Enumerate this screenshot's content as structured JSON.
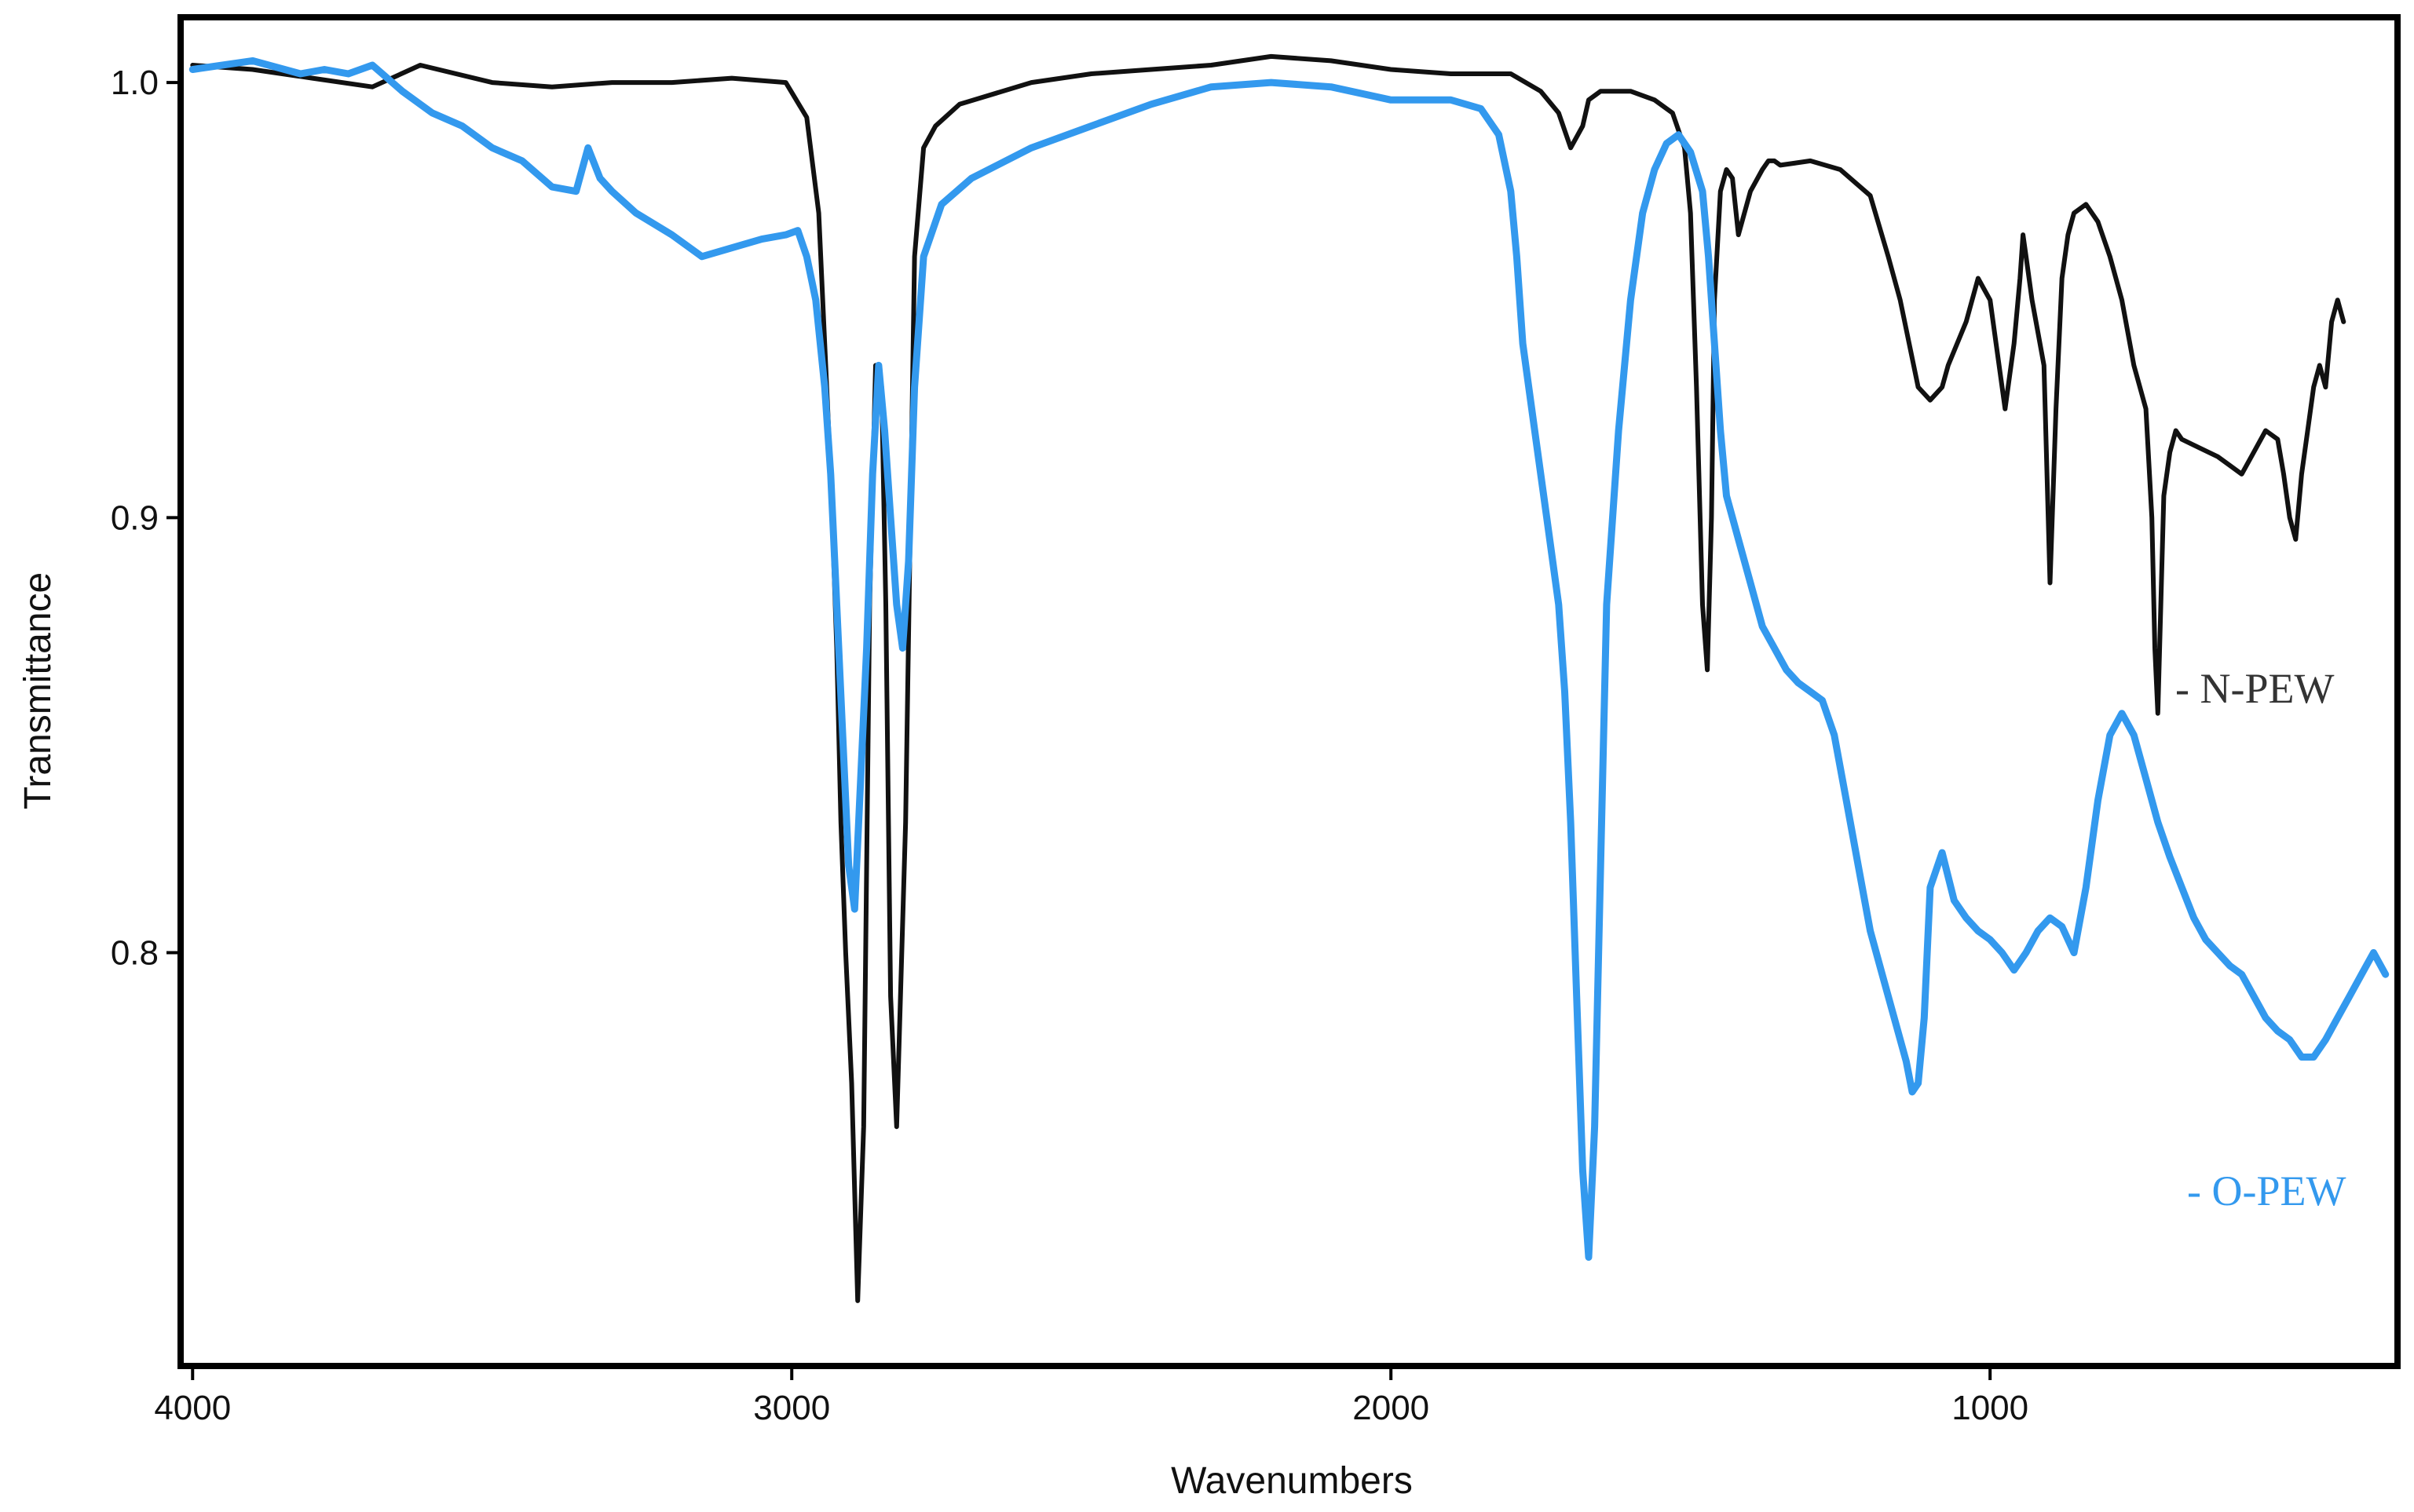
{
  "chart_data": {
    "type": "line",
    "title": "",
    "xlabel": "Wavenumbers",
    "ylabel": "Transmittance",
    "xlim": [
      4020,
      320
    ],
    "ylim": [
      0.705,
      1.015
    ],
    "x_reversed": true,
    "grid": false,
    "legend_placement": "right, next to series ends",
    "x_ticks": [
      4000,
      3000,
      2000,
      1000
    ],
    "x_tick_labels": [
      "4000",
      "3000",
      "2000",
      "1000"
    ],
    "y_ticks": [
      1.0,
      0.9,
      0.8
    ],
    "y_tick_labels": [
      "1.0",
      "0.9",
      "0.8"
    ],
    "series": [
      {
        "name": "- N-PEW",
        "color": "#111111",
        "x": [
          4000,
          3900,
          3800,
          3700,
          3620,
          3500,
          3400,
          3300,
          3200,
          3100,
          3010,
          2975,
          2955,
          2945,
          2935,
          2925,
          2918,
          2910,
          2900,
          2890,
          2880,
          2870,
          2860,
          2850,
          2843,
          2835,
          2825,
          2810,
          2795,
          2780,
          2760,
          2720,
          2600,
          2500,
          2400,
          2300,
          2200,
          2100,
          2000,
          1900,
          1800,
          1750,
          1720,
          1700,
          1680,
          1670,
          1650,
          1600,
          1560,
          1530,
          1510,
          1500,
          1490,
          1480,
          1472,
          1465,
          1460,
          1450,
          1440,
          1430,
          1420,
          1400,
          1380,
          1370,
          1360,
          1350,
          1300,
          1250,
          1200,
          1170,
          1150,
          1120,
          1100,
          1080,
          1070,
          1040,
          1020,
          1000,
          990,
          975,
          960,
          950,
          945,
          940,
          930,
          910,
          900,
          890,
          880,
          870,
          860,
          840,
          820,
          800,
          780,
          760,
          740,
          730,
          725,
          720,
          715,
          710,
          700,
          690,
          680,
          650,
          620,
          600,
          580,
          560,
          540,
          520,
          510,
          500,
          490,
          480,
          470,
          460,
          450,
          440,
          430,
          420,
          410
        ],
        "values": [
          1.004,
          1.003,
          1.001,
          0.999,
          1.004,
          1.0,
          0.999,
          1.0,
          1.0,
          1.001,
          1.0,
          0.992,
          0.97,
          0.94,
          0.91,
          0.87,
          0.83,
          0.8,
          0.77,
          0.72,
          0.76,
          0.88,
          0.935,
          0.93,
          0.88,
          0.79,
          0.76,
          0.83,
          0.96,
          0.985,
          0.99,
          0.995,
          1.0,
          1.002,
          1.003,
          1.004,
          1.006,
          1.005,
          1.003,
          1.002,
          1.002,
          0.998,
          0.993,
          0.985,
          0.99,
          0.996,
          0.998,
          0.998,
          0.996,
          0.993,
          0.985,
          0.97,
          0.93,
          0.88,
          0.865,
          0.9,
          0.95,
          0.975,
          0.98,
          0.978,
          0.965,
          0.975,
          0.98,
          0.982,
          0.982,
          0.981,
          0.982,
          0.98,
          0.974,
          0.96,
          0.95,
          0.93,
          0.927,
          0.93,
          0.935,
          0.945,
          0.955,
          0.95,
          0.94,
          0.925,
          0.94,
          0.955,
          0.965,
          0.96,
          0.95,
          0.935,
          0.885,
          0.925,
          0.955,
          0.965,
          0.97,
          0.972,
          0.968,
          0.96,
          0.95,
          0.935,
          0.925,
          0.9,
          0.87,
          0.855,
          0.88,
          0.905,
          0.915,
          0.92,
          0.918,
          0.916,
          0.914,
          0.912,
          0.91,
          0.915,
          0.92,
          0.918,
          0.91,
          0.9,
          0.895,
          0.91,
          0.92,
          0.93,
          0.935,
          0.93,
          0.945,
          0.95,
          0.945
        ]
      },
      {
        "name": "- O-PEW",
        "color": "#3399ee",
        "x": [
          4000,
          3900,
          3820,
          3780,
          3740,
          3700,
          3650,
          3600,
          3550,
          3500,
          3450,
          3400,
          3360,
          3340,
          3320,
          3300,
          3260,
          3200,
          3150,
          3100,
          3050,
          3010,
          2990,
          2975,
          2960,
          2945,
          2935,
          2925,
          2915,
          2905,
          2895,
          2885,
          2875,
          2865,
          2855,
          2845,
          2835,
          2825,
          2815,
          2805,
          2795,
          2780,
          2750,
          2700,
          2600,
          2500,
          2400,
          2300,
          2200,
          2100,
          2000,
          1900,
          1850,
          1820,
          1800,
          1790,
          1780,
          1760,
          1740,
          1720,
          1710,
          1700,
          1690,
          1680,
          1670,
          1660,
          1650,
          1640,
          1620,
          1600,
          1580,
          1560,
          1540,
          1520,
          1500,
          1480,
          1470,
          1460,
          1450,
          1440,
          1420,
          1400,
          1380,
          1360,
          1340,
          1320,
          1300,
          1280,
          1260,
          1240,
          1220,
          1200,
          1180,
          1160,
          1140,
          1130,
          1120,
          1110,
          1100,
          1080,
          1060,
          1040,
          1020,
          1000,
          980,
          960,
          940,
          920,
          900,
          880,
          860,
          840,
          820,
          800,
          780,
          760,
          740,
          720,
          700,
          680,
          660,
          640,
          620,
          600,
          580,
          560,
          540,
          520,
          500,
          480,
          460,
          440,
          420,
          400,
          380,
          360,
          340
        ],
        "values": [
          1.003,
          1.005,
          1.002,
          1.003,
          1.002,
          1.004,
          0.998,
          0.993,
          0.99,
          0.985,
          0.982,
          0.976,
          0.975,
          0.985,
          0.978,
          0.975,
          0.97,
          0.965,
          0.96,
          0.962,
          0.964,
          0.965,
          0.966,
          0.96,
          0.95,
          0.93,
          0.91,
          0.88,
          0.85,
          0.82,
          0.81,
          0.84,
          0.87,
          0.91,
          0.935,
          0.92,
          0.9,
          0.88,
          0.87,
          0.89,
          0.93,
          0.96,
          0.972,
          0.978,
          0.985,
          0.99,
          0.995,
          0.999,
          1.0,
          0.999,
          0.996,
          0.996,
          0.994,
          0.988,
          0.975,
          0.96,
          0.94,
          0.92,
          0.9,
          0.88,
          0.86,
          0.83,
          0.79,
          0.75,
          0.73,
          0.76,
          0.82,
          0.88,
          0.92,
          0.95,
          0.97,
          0.98,
          0.986,
          0.988,
          0.984,
          0.975,
          0.96,
          0.94,
          0.92,
          0.905,
          0.895,
          0.885,
          0.875,
          0.87,
          0.865,
          0.862,
          0.86,
          0.858,
          0.85,
          0.835,
          0.82,
          0.805,
          0.795,
          0.785,
          0.775,
          0.768,
          0.77,
          0.785,
          0.815,
          0.823,
          0.812,
          0.808,
          0.805,
          0.803,
          0.8,
          0.796,
          0.8,
          0.805,
          0.808,
          0.806,
          0.8,
          0.815,
          0.835,
          0.85,
          0.855,
          0.85,
          0.84,
          0.83,
          0.822,
          0.815,
          0.808,
          0.803,
          0.8,
          0.797,
          0.795,
          0.79,
          0.785,
          0.782,
          0.78,
          0.776,
          0.776,
          0.78,
          0.785,
          0.79,
          0.795,
          0.8,
          0.795
        ]
      }
    ]
  }
}
